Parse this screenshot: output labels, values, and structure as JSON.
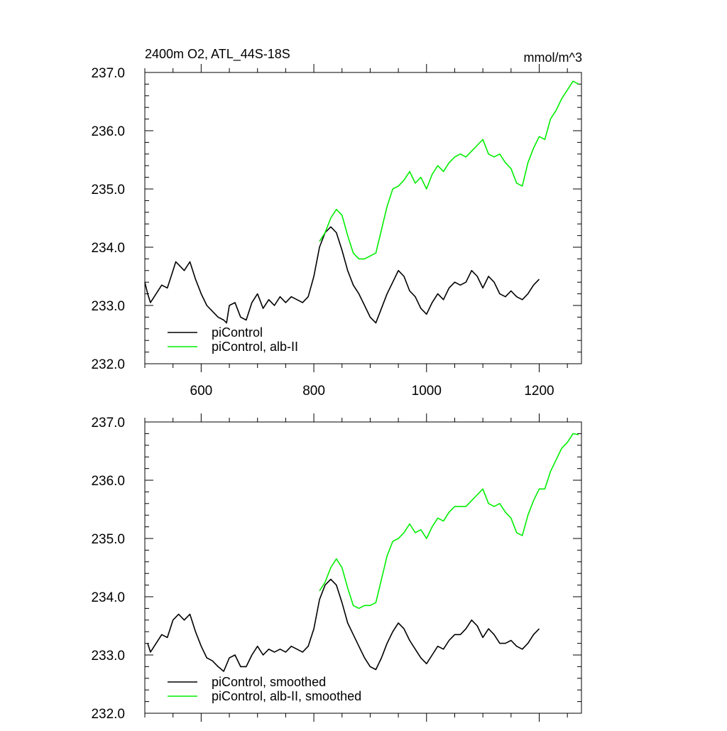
{
  "chart_data": [
    {
      "type": "line",
      "title": "2400m O2, ATL_44S-18S",
      "units": "mmol/m^3",
      "xlim": [
        500,
        1275
      ],
      "ylim": [
        232.0,
        237.0
      ],
      "x_ticks": [
        600,
        800,
        1000,
        1200
      ],
      "x_tick_labels": [
        "600",
        "800",
        "1000",
        "1200"
      ],
      "y_ticks": [
        232.0,
        233.0,
        234.0,
        235.0,
        236.0,
        237.0
      ],
      "y_tick_labels": [
        "232.0",
        "233.0",
        "234.0",
        "235.0",
        "236.0",
        "237.0"
      ],
      "legend_position": "bottom-left",
      "series": [
        {
          "name": "piControl",
          "color": "#000000",
          "x": [
            500,
            505,
            510,
            520,
            530,
            540,
            550,
            555,
            560,
            570,
            580,
            590,
            600,
            610,
            620,
            630,
            640,
            645,
            650,
            660,
            670,
            680,
            690,
            700,
            710,
            720,
            730,
            740,
            750,
            760,
            770,
            780,
            790,
            800,
            810,
            820,
            830,
            840,
            850,
            860,
            870,
            880,
            890,
            900,
            910,
            920,
            930,
            940,
            950,
            960,
            970,
            980,
            990,
            1000,
            1010,
            1020,
            1030,
            1040,
            1050,
            1060,
            1070,
            1080,
            1090,
            1100,
            1110,
            1120,
            1130,
            1140,
            1150,
            1160,
            1170,
            1180,
            1190,
            1200
          ],
          "values": [
            233.4,
            233.2,
            233.05,
            233.2,
            233.35,
            233.3,
            233.6,
            233.75,
            233.7,
            233.6,
            233.75,
            233.45,
            233.2,
            233.0,
            232.9,
            232.8,
            232.75,
            232.7,
            233.0,
            233.05,
            232.8,
            232.75,
            233.05,
            233.2,
            232.95,
            233.1,
            233.0,
            233.15,
            233.05,
            233.15,
            233.1,
            233.05,
            233.15,
            233.5,
            234.0,
            234.25,
            234.35,
            234.25,
            233.95,
            233.6,
            233.35,
            233.2,
            233.0,
            232.8,
            232.7,
            232.95,
            233.2,
            233.4,
            233.6,
            233.5,
            233.25,
            233.15,
            232.95,
            232.85,
            233.05,
            233.2,
            233.1,
            233.3,
            233.4,
            233.35,
            233.4,
            233.6,
            233.5,
            233.3,
            233.5,
            233.4,
            233.2,
            233.15,
            233.25,
            233.15,
            233.1,
            233.2,
            233.35,
            233.45
          ]
        },
        {
          "name": "piControl, alb-II",
          "color": "#00ee00",
          "x": [
            810,
            820,
            830,
            840,
            850,
            860,
            870,
            880,
            890,
            900,
            910,
            920,
            930,
            940,
            950,
            960,
            970,
            980,
            990,
            1000,
            1010,
            1020,
            1030,
            1040,
            1050,
            1060,
            1070,
            1080,
            1090,
            1100,
            1110,
            1120,
            1130,
            1140,
            1150,
            1160,
            1170,
            1180,
            1190,
            1200,
            1210,
            1220,
            1230,
            1240,
            1250,
            1260,
            1270
          ],
          "values": [
            234.1,
            234.25,
            234.5,
            234.65,
            234.55,
            234.2,
            233.9,
            233.8,
            233.8,
            233.85,
            233.9,
            234.3,
            234.7,
            235.0,
            235.05,
            235.15,
            235.3,
            235.1,
            235.2,
            235.0,
            235.25,
            235.4,
            235.3,
            235.45,
            235.55,
            235.6,
            235.55,
            235.65,
            235.75,
            235.85,
            235.6,
            235.55,
            235.6,
            235.45,
            235.35,
            235.1,
            235.05,
            235.45,
            235.7,
            235.9,
            235.85,
            236.2,
            236.35,
            236.55,
            236.7,
            236.85,
            236.8
          ]
        }
      ]
    },
    {
      "type": "line",
      "xlim": [
        500,
        1275
      ],
      "ylim": [
        232.0,
        237.0
      ],
      "x_ticks": [
        600,
        800,
        1000,
        1200
      ],
      "y_ticks": [
        232.0,
        233.0,
        234.0,
        235.0,
        236.0,
        237.0
      ],
      "y_tick_labels": [
        "232.0",
        "233.0",
        "234.0",
        "235.0",
        "236.0",
        "237.0"
      ],
      "legend_position": "bottom-left",
      "series": [
        {
          "name": "piControl, smoothed",
          "color": "#000000",
          "x": [
            505,
            510,
            520,
            530,
            540,
            550,
            560,
            570,
            580,
            590,
            600,
            610,
            620,
            630,
            640,
            650,
            660,
            670,
            680,
            690,
            700,
            710,
            720,
            730,
            740,
            750,
            760,
            770,
            780,
            790,
            800,
            810,
            820,
            830,
            840,
            850,
            860,
            870,
            880,
            890,
            900,
            910,
            920,
            930,
            940,
            950,
            960,
            970,
            980,
            990,
            1000,
            1010,
            1020,
            1030,
            1040,
            1050,
            1060,
            1070,
            1080,
            1090,
            1100,
            1110,
            1120,
            1130,
            1140,
            1150,
            1160,
            1170,
            1180,
            1190,
            1200
          ],
          "values": [
            233.2,
            233.05,
            233.2,
            233.35,
            233.3,
            233.6,
            233.7,
            233.6,
            233.7,
            233.4,
            233.15,
            232.95,
            232.9,
            232.8,
            232.72,
            232.95,
            233.0,
            232.8,
            232.8,
            233.0,
            233.15,
            233.0,
            233.1,
            233.05,
            233.1,
            233.05,
            233.15,
            233.1,
            233.05,
            233.15,
            233.45,
            233.95,
            234.2,
            234.3,
            234.2,
            233.9,
            233.55,
            233.35,
            233.15,
            232.95,
            232.8,
            232.75,
            232.95,
            233.2,
            233.4,
            233.55,
            233.45,
            233.25,
            233.1,
            232.95,
            232.85,
            233.0,
            233.15,
            233.1,
            233.25,
            233.35,
            233.35,
            233.45,
            233.6,
            233.5,
            233.3,
            233.45,
            233.35,
            233.2,
            233.2,
            233.25,
            233.15,
            233.1,
            233.2,
            233.35,
            233.45
          ]
        },
        {
          "name": "piControl, alb-II, smoothed",
          "color": "#00ee00",
          "x": [
            810,
            820,
            830,
            840,
            850,
            860,
            870,
            880,
            890,
            900,
            910,
            920,
            930,
            940,
            950,
            960,
            970,
            980,
            990,
            1000,
            1010,
            1020,
            1030,
            1040,
            1050,
            1060,
            1070,
            1080,
            1090,
            1100,
            1110,
            1120,
            1130,
            1140,
            1150,
            1160,
            1170,
            1180,
            1190,
            1200,
            1210,
            1220,
            1230,
            1240,
            1250,
            1260,
            1270
          ],
          "values": [
            234.1,
            234.25,
            234.5,
            234.65,
            234.5,
            234.15,
            233.85,
            233.8,
            233.85,
            233.85,
            233.9,
            234.3,
            234.7,
            234.95,
            235.0,
            235.1,
            235.25,
            235.1,
            235.15,
            235.0,
            235.2,
            235.35,
            235.3,
            235.45,
            235.55,
            235.55,
            235.55,
            235.65,
            235.75,
            235.85,
            235.6,
            235.55,
            235.6,
            235.45,
            235.35,
            235.1,
            235.05,
            235.4,
            235.65,
            235.85,
            235.85,
            236.15,
            236.35,
            236.55,
            236.65,
            236.8,
            236.78
          ]
        }
      ]
    }
  ]
}
